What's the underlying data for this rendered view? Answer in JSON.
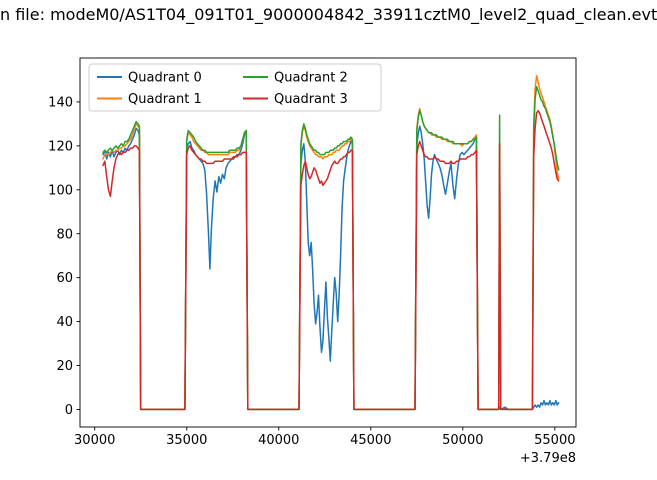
{
  "figure": {
    "title_visible": "n file: modeM0/AS1T04_091T01_9000004842_33911cztM0_level2_quad_clean.evt",
    "background": "#ffffff"
  },
  "chart_data": {
    "type": "line",
    "title": "n file: modeM0/AS1T04_091T01_9000004842_33911cztM0_level2_quad_clean.evt",
    "xlabel": "",
    "ylabel": "",
    "x_offset_text": "+3.79e8",
    "xlim": [
      29200,
      56150
    ],
    "ylim": [
      -8,
      160
    ],
    "xticks": [
      30000,
      35000,
      40000,
      45000,
      50000,
      55000
    ],
    "yticks": [
      0,
      20,
      40,
      60,
      80,
      100,
      120,
      140
    ],
    "grid": false,
    "legend": {
      "position": "upper left",
      "columns": 2
    },
    "x": [
      30450,
      30550,
      30650,
      30750,
      30850,
      30950,
      31050,
      31150,
      31250,
      31350,
      31450,
      31550,
      31650,
      31750,
      31850,
      31950,
      32050,
      32150,
      32250,
      32350,
      32430,
      32500,
      33500,
      34900,
      35000,
      35080,
      35180,
      35280,
      35380,
      35480,
      35580,
      35680,
      35780,
      35880,
      35980,
      36080,
      36180,
      36260,
      36340,
      36440,
      36540,
      36640,
      36740,
      36840,
      36940,
      37040,
      37140,
      37240,
      37340,
      37440,
      37540,
      37640,
      37740,
      37840,
      37940,
      38040,
      38140,
      38230,
      38320,
      39500,
      41100,
      41200,
      41280,
      41360,
      41440,
      41520,
      41600,
      41680,
      41760,
      41840,
      41920,
      42000,
      42080,
      42160,
      42240,
      42320,
      42400,
      42480,
      42560,
      42640,
      42720,
      42800,
      42880,
      42960,
      43040,
      43120,
      43200,
      43280,
      43360,
      43440,
      43520,
      43600,
      43680,
      43760,
      43840,
      43920,
      44000,
      44080,
      45500,
      47400,
      47500,
      47580,
      47660,
      47740,
      47820,
      47900,
      47980,
      48060,
      48140,
      48220,
      48300,
      48380,
      48460,
      48560,
      48660,
      48760,
      48860,
      48960,
      49060,
      49160,
      49260,
      49360,
      49460,
      49560,
      49660,
      49760,
      49860,
      49960,
      50060,
      50160,
      50260,
      50360,
      50460,
      50560,
      50660,
      50740,
      50830,
      51400,
      51950,
      52000,
      52060,
      52300,
      52450,
      53200,
      53780,
      53850,
      53930,
      54010,
      54090,
      54170,
      54250,
      54330,
      54410,
      54490,
      54570,
      54650,
      54730,
      54810,
      54890,
      54970,
      55050,
      55130,
      55210
    ],
    "series": [
      {
        "name": "Quadrant 0",
        "color": "#1f77b4",
        "values": [
          116,
          118,
          114,
          117,
          115,
          118,
          115,
          117,
          118,
          116,
          118,
          117,
          119,
          118,
          120,
          121,
          123,
          125,
          128,
          127,
          125,
          0,
          0,
          0,
          118,
          121,
          122,
          119,
          118,
          116,
          115,
          114,
          113,
          112,
          109,
          98,
          80,
          64,
          82,
          96,
          104,
          99,
          106,
          103,
          107,
          105,
          110,
          112,
          113,
          114,
          114,
          115,
          116,
          116,
          118,
          121,
          125,
          127,
          0,
          0,
          0,
          112,
          118,
          121,
          113,
          95,
          76,
          70,
          76,
          64,
          48,
          39,
          44,
          52,
          37,
          26,
          31,
          45,
          58,
          42,
          33,
          22,
          36,
          48,
          60,
          53,
          40,
          52,
          70,
          92,
          104,
          109,
          114,
          118,
          120,
          122,
          121,
          0,
          0,
          0,
          120,
          126,
          129,
          126,
          121,
          114,
          104,
          93,
          87,
          96,
          107,
          113,
          116,
          114,
          112,
          110,
          107,
          102,
          98,
          103,
          108,
          112,
          102,
          96,
          105,
          112,
          116,
          117,
          116,
          117,
          118,
          119,
          120,
          121,
          123,
          124,
          0,
          0,
          0,
          1,
          0,
          1,
          0,
          0,
          0,
          1,
          2,
          1,
          2,
          1,
          3,
          2,
          4,
          2,
          3,
          2,
          4,
          2,
          3,
          2,
          4,
          2,
          3
        ]
      },
      {
        "name": "Quadrant 1",
        "color": "#ff7f0e",
        "values": [
          114,
          116,
          117,
          116,
          117,
          118,
          117,
          118,
          118,
          119,
          119,
          120,
          120,
          121,
          122,
          123,
          125,
          128,
          130,
          129,
          128,
          0,
          0,
          0,
          122,
          126,
          125,
          124,
          122,
          121,
          120,
          119,
          118,
          118,
          117,
          117,
          116,
          116,
          116,
          116,
          116,
          116,
          116,
          116,
          116,
          116,
          116,
          116,
          117,
          117,
          117,
          117,
          118,
          118,
          120,
          123,
          126,
          127,
          0,
          0,
          0,
          120,
          126,
          129,
          127,
          124,
          122,
          120,
          119,
          118,
          117,
          116,
          116,
          115,
          115,
          115,
          114,
          115,
          115,
          115,
          116,
          116,
          116,
          117,
          117,
          118,
          118,
          118,
          119,
          120,
          120,
          121,
          121,
          122,
          122,
          123,
          122,
          0,
          0,
          0,
          128,
          134,
          137,
          134,
          131,
          129,
          128,
          127,
          126,
          126,
          125,
          125,
          125,
          124,
          124,
          124,
          123,
          123,
          123,
          122,
          122,
          122,
          121,
          121,
          121,
          121,
          121,
          120,
          121,
          121,
          121,
          122,
          122,
          123,
          124,
          125,
          0,
          0,
          0,
          119,
          0,
          0,
          0,
          0,
          0,
          130,
          146,
          152,
          149,
          146,
          144,
          142,
          140,
          138,
          136,
          134,
          132,
          129,
          125,
          120,
          114,
          108,
          105
        ]
      },
      {
        "name": "Quadrant 2",
        "color": "#2ca02c",
        "values": [
          117,
          118,
          117,
          118,
          119,
          118,
          119,
          120,
          119,
          120,
          121,
          120,
          122,
          122,
          123,
          125,
          127,
          129,
          131,
          130,
          129,
          0,
          0,
          0,
          123,
          127,
          126,
          125,
          124,
          122,
          121,
          120,
          119,
          118,
          118,
          117,
          117,
          117,
          117,
          117,
          117,
          117,
          117,
          117,
          117,
          117,
          117,
          117,
          118,
          118,
          118,
          118,
          119,
          119,
          120,
          123,
          126,
          127,
          0,
          0,
          0,
          121,
          127,
          130,
          128,
          125,
          123,
          121,
          120,
          119,
          118,
          118,
          117,
          117,
          116,
          116,
          116,
          116,
          117,
          117,
          117,
          118,
          118,
          118,
          119,
          119,
          120,
          120,
          121,
          121,
          122,
          122,
          122,
          123,
          123,
          124,
          123,
          0,
          0,
          0,
          127,
          133,
          136,
          134,
          131,
          129,
          128,
          127,
          126,
          126,
          126,
          125,
          125,
          125,
          124,
          124,
          124,
          123,
          123,
          123,
          122,
          122,
          122,
          121,
          121,
          121,
          121,
          121,
          121,
          121,
          121,
          122,
          122,
          123,
          123,
          124,
          0,
          0,
          0,
          134,
          0,
          0,
          0,
          0,
          0,
          127,
          141,
          147,
          145,
          143,
          141,
          140,
          138,
          137,
          135,
          133,
          131,
          128,
          124,
          121,
          116,
          112,
          109
        ]
      },
      {
        "name": "Quadrant 3",
        "color": "#d62728",
        "values": [
          111,
          113,
          106,
          100,
          97,
          104,
          110,
          114,
          116,
          117,
          116,
          117,
          117,
          118,
          118,
          119,
          119,
          120,
          120,
          119,
          118,
          0,
          0,
          0,
          116,
          119,
          120,
          118,
          117,
          116,
          115,
          114,
          114,
          113,
          113,
          112,
          112,
          112,
          112,
          112,
          113,
          113,
          113,
          113,
          113,
          114,
          114,
          114,
          114,
          114,
          115,
          115,
          115,
          116,
          116,
          117,
          117,
          117,
          0,
          0,
          0,
          102,
          107,
          111,
          113,
          110,
          107,
          105,
          106,
          108,
          110,
          109,
          107,
          105,
          103,
          104,
          102,
          103,
          104,
          105,
          107,
          109,
          111,
          112,
          113,
          112,
          112,
          113,
          114,
          114,
          115,
          115,
          116,
          117,
          117,
          118,
          118,
          0,
          0,
          0,
          116,
          120,
          122,
          120,
          118,
          116,
          115,
          115,
          114,
          114,
          114,
          114,
          115,
          114,
          114,
          113,
          113,
          113,
          112,
          112,
          112,
          113,
          112,
          112,
          113,
          113,
          114,
          114,
          114,
          114,
          115,
          115,
          116,
          116,
          117,
          118,
          0,
          0,
          0,
          121,
          0,
          0,
          0,
          0,
          0,
          115,
          128,
          135,
          136,
          135,
          133,
          131,
          129,
          127,
          125,
          123,
          121,
          119,
          116,
          112,
          108,
          105,
          104
        ]
      }
    ]
  }
}
